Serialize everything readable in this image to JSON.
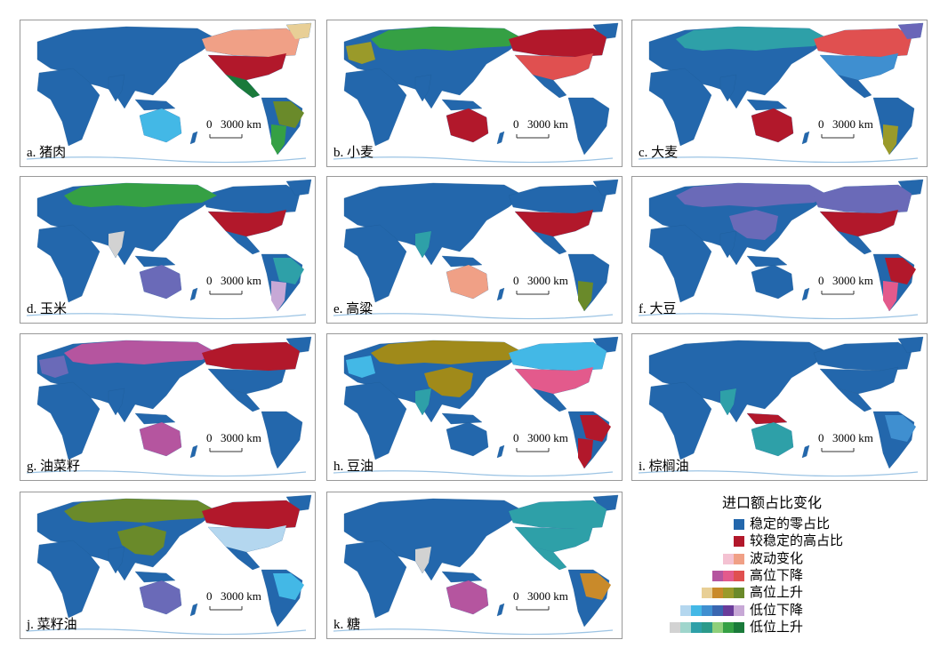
{
  "panels": [
    {
      "label": "a. 猪肉"
    },
    {
      "label": "b. 小麦"
    },
    {
      "label": "c. 大麦"
    },
    {
      "label": "d. 玉米"
    },
    {
      "label": "e. 高粱"
    },
    {
      "label": "f. 大豆"
    },
    {
      "label": "g. 油菜籽"
    },
    {
      "label": "h. 豆油"
    },
    {
      "label": "i. 棕榈油"
    },
    {
      "label": "j. 菜籽油"
    },
    {
      "label": "k. 糖"
    }
  ],
  "scale_bar": {
    "zero": "0",
    "distance": "3000 km"
  },
  "legend": {
    "title": "进口额占比变化",
    "items": [
      {
        "label": "稳定的零占比",
        "colors": [
          "#2367ac"
        ]
      },
      {
        "label": "较稳定的高占比",
        "colors": [
          "#b2182b"
        ]
      },
      {
        "label": "波动变化",
        "colors": [
          "#f4c2d2",
          "#f0a086"
        ]
      },
      {
        "label": "高位下降",
        "colors": [
          "#b5559f",
          "#e35a8c",
          "#e05050"
        ]
      },
      {
        "label": "高位上升",
        "colors": [
          "#e8cf96",
          "#c98a2a",
          "#9a9a2a",
          "#6a8a2a"
        ]
      },
      {
        "label": "低位下降",
        "colors": [
          "#b4d7ef",
          "#43b8e6",
          "#3f8fd0",
          "#3a66b0",
          "#6a3c9a",
          "#c7a8d6"
        ]
      },
      {
        "label": "低位上升",
        "colors": [
          "#d2d2d2",
          "#9fd5cc",
          "#2ea0a8",
          "#2b9a8a",
          "#8fcf7a",
          "#35a044",
          "#1a7a3a"
        ]
      }
    ]
  }
}
